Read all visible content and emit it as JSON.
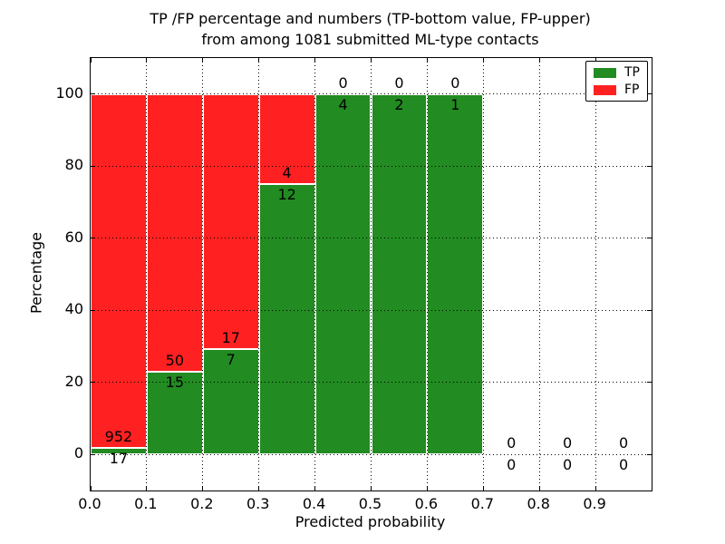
{
  "figure": {
    "title_line1": "TP /FP percentage and numbers (TP-bottom value, FP-upper)",
    "title_line2": "from among 1081 submitted ML-type contacts"
  },
  "chart_data": {
    "type": "bar",
    "stacked": true,
    "normalized_to_percent": true,
    "title": "TP /FP percentage and numbers (TP-bottom value, FP-upper)\nfrom among 1081 submitted ML-type contacts",
    "xlabel": "Predicted probability",
    "ylabel": "Percentage",
    "xlim": [
      0.0,
      1.0
    ],
    "ylim": [
      -10,
      110
    ],
    "grid": "dotted, both axes, drawn above bars",
    "bin_width": 0.1,
    "bin_starts": [
      0.0,
      0.1,
      0.2,
      0.3,
      0.4,
      0.5,
      0.6,
      0.7,
      0.8,
      0.9
    ],
    "categories": [
      "0.0-0.1",
      "0.1-0.2",
      "0.2-0.3",
      "0.3-0.4",
      "0.4-0.5",
      "0.5-0.6",
      "0.6-0.7",
      "0.7-0.8",
      "0.8-0.9",
      "0.9-1.0"
    ],
    "series": [
      {
        "name": "TP",
        "color": "#228B22",
        "values": [
          17,
          15,
          7,
          12,
          4,
          2,
          1,
          0,
          0,
          0
        ]
      },
      {
        "name": "FP",
        "color": "#FF2121",
        "values": [
          952,
          50,
          17,
          4,
          0,
          0,
          0,
          0,
          0,
          0
        ]
      }
    ],
    "tp_percent_heights": [
      1.75,
      23.08,
      29.17,
      75.0,
      100.0,
      100.0,
      100.0,
      null,
      null,
      null
    ],
    "total_contacts": 1081,
    "annotation_rule": "TP count printed below stack top, FP count printed above stack top",
    "bar_edge_color": "#FFFFFF",
    "x_tick_labels": [
      "0.0",
      "0.1",
      "0.2",
      "0.3",
      "0.4",
      "0.5",
      "0.6",
      "0.7",
      "0.8",
      "0.9"
    ],
    "y_tick_values": [
      0,
      20,
      40,
      60,
      80,
      100
    ],
    "y_tick_labels": [
      "0",
      "20",
      "40",
      "60",
      "80",
      "100"
    ],
    "legend": {
      "position": "upper right",
      "entries": [
        {
          "label": "TP",
          "color": "#228B22"
        },
        {
          "label": "FP",
          "color": "#FF2121"
        }
      ]
    }
  }
}
